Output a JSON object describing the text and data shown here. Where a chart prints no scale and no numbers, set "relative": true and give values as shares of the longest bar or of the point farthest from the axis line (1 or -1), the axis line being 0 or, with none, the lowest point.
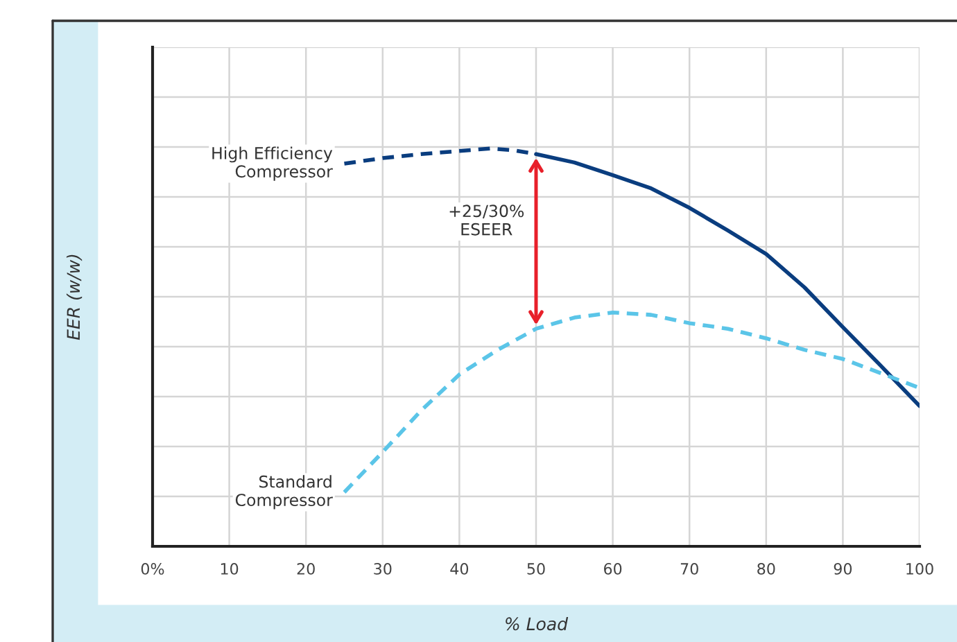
{
  "chart_data": {
    "type": "line",
    "relative": true,
    "xlabel": "% Load",
    "ylabel": "EER (w/w)",
    "xlim": [
      0,
      100
    ],
    "xticks": [
      {
        "value": 0,
        "label": "0%"
      },
      10,
      20,
      30,
      40,
      50,
      60,
      70,
      80,
      90,
      100
    ],
    "grid": true,
    "legend": false,
    "marker": "none",
    "series": [
      {
        "name": "High Efficiency Compressor",
        "color": "#0a3d7f",
        "line_style": "dashed",
        "x": [
          25,
          30,
          35,
          40,
          44,
          47,
          50
        ],
        "values": [
          0.962,
          0.976,
          0.986,
          0.994,
          1.0,
          0.996,
          0.986
        ]
      },
      {
        "color": "#0a3d7f",
        "line_style": "solid",
        "x": [
          50,
          55,
          60,
          65,
          70,
          75,
          80,
          85,
          90,
          95,
          100
        ],
        "values": [
          0.986,
          0.965,
          0.933,
          0.9,
          0.851,
          0.794,
          0.735,
          0.651,
          0.551,
          0.453,
          0.353
        ]
      },
      {
        "name": "Standard Compressor",
        "color": "#5bc5e8",
        "line_style": "dashed",
        "x": [
          25,
          30,
          35,
          40,
          45,
          50,
          55,
          60,
          65,
          70,
          75,
          80,
          85,
          90,
          95,
          100
        ],
        "values": [
          0.136,
          0.237,
          0.341,
          0.432,
          0.494,
          0.547,
          0.575,
          0.588,
          0.582,
          0.561,
          0.547,
          0.523,
          0.494,
          0.471,
          0.435,
          0.398
        ]
      }
    ],
    "annotations": [
      "+25/30%\nESEER"
    ]
  }
}
